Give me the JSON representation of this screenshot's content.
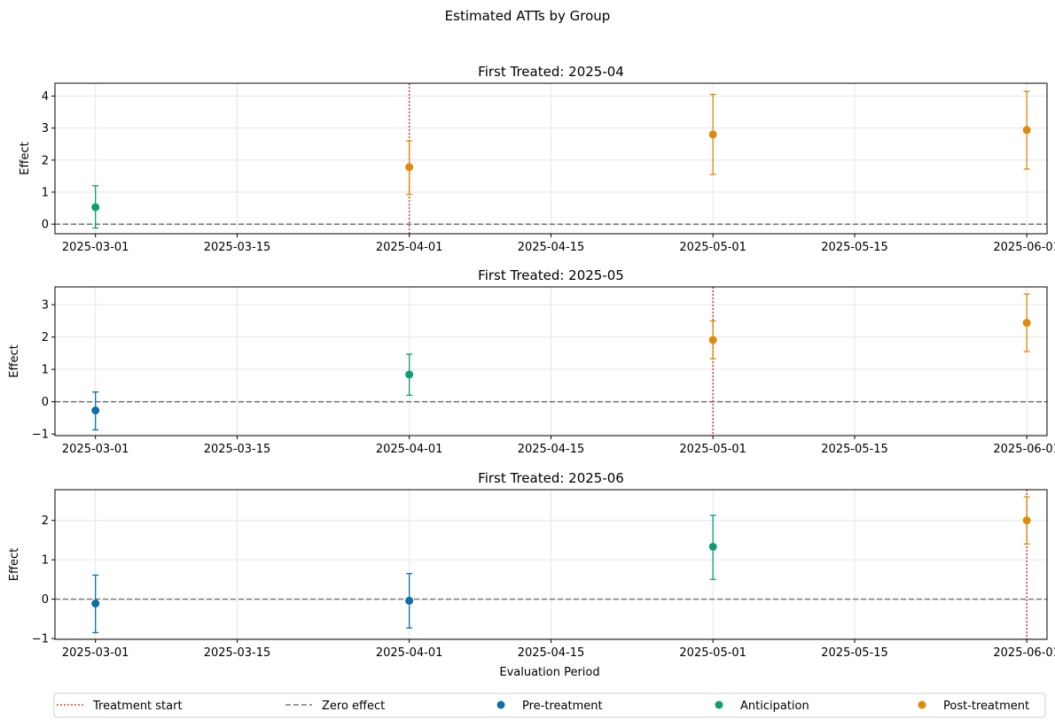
{
  "chart_data": {
    "type": "scatter",
    "title": "Estimated ATTs by Group",
    "xlabel": "Evaluation Period",
    "ylabel": "Effect",
    "x_ticks": [
      "2025-03-01",
      "2025-03-15",
      "2025-04-01",
      "2025-04-15",
      "2025-05-01",
      "2025-05-15",
      "2025-06-01"
    ],
    "xlim": [
      "2025-02-25",
      "2025-06-03"
    ],
    "grid": true,
    "legend_placement": "bottom",
    "legend": [
      {
        "label": "Treatment start",
        "kind": "dotted-line",
        "color": "#e8403a"
      },
      {
        "label": "Zero effect",
        "kind": "dashed-line",
        "color": "#7a7a7a"
      },
      {
        "label": "Pre-treatment",
        "kind": "marker",
        "color": "#0b6fa8"
      },
      {
        "label": "Anticipation",
        "kind": "marker",
        "color": "#0c9e73"
      },
      {
        "label": "Post-treatment",
        "kind": "marker",
        "color": "#de8a0b"
      }
    ],
    "colors": {
      "Pre-treatment": "#0b6fa8",
      "Anticipation": "#0c9e73",
      "Post-treatment": "#de8a0b",
      "treatment_line": "#e8403a",
      "zero_line": "#7a7a7a"
    },
    "panels": [
      {
        "title": "First Treated: 2025-04",
        "treatment_start": "2025-04-01",
        "ylim": [
          -0.3,
          4.4
        ],
        "yticks": [
          0,
          1,
          2,
          3,
          4
        ],
        "points": [
          {
            "x": "2025-03-01",
            "y": 0.53,
            "lo": -0.12,
            "hi": 1.2,
            "group": "Anticipation"
          },
          {
            "x": "2025-04-01",
            "y": 1.78,
            "lo": 0.93,
            "hi": 2.6,
            "group": "Post-treatment"
          },
          {
            "x": "2025-05-01",
            "y": 2.8,
            "lo": 1.55,
            "hi": 4.05,
            "group": "Post-treatment"
          },
          {
            "x": "2025-06-01",
            "y": 2.94,
            "lo": 1.72,
            "hi": 4.15,
            "group": "Post-treatment"
          }
        ]
      },
      {
        "title": "First Treated: 2025-05",
        "treatment_start": "2025-05-01",
        "ylim": [
          -1.05,
          3.55
        ],
        "yticks": [
          -1,
          0,
          1,
          2,
          3
        ],
        "points": [
          {
            "x": "2025-03-01",
            "y": -0.27,
            "lo": -0.87,
            "hi": 0.3,
            "group": "Pre-treatment"
          },
          {
            "x": "2025-04-01",
            "y": 0.84,
            "lo": 0.2,
            "hi": 1.47,
            "group": "Anticipation"
          },
          {
            "x": "2025-05-01",
            "y": 1.91,
            "lo": 1.33,
            "hi": 2.5,
            "group": "Post-treatment"
          },
          {
            "x": "2025-06-01",
            "y": 2.44,
            "lo": 1.55,
            "hi": 3.33,
            "group": "Post-treatment"
          }
        ]
      },
      {
        "title": "First Treated: 2025-06",
        "treatment_start": "2025-06-01",
        "ylim": [
          -1.02,
          2.78
        ],
        "yticks": [
          -1,
          0,
          1,
          2
        ],
        "points": [
          {
            "x": "2025-03-01",
            "y": -0.11,
            "lo": -0.85,
            "hi": 0.61,
            "group": "Pre-treatment"
          },
          {
            "x": "2025-04-01",
            "y": -0.04,
            "lo": -0.73,
            "hi": 0.65,
            "group": "Pre-treatment"
          },
          {
            "x": "2025-05-01",
            "y": 1.33,
            "lo": 0.5,
            "hi": 2.13,
            "group": "Anticipation"
          },
          {
            "x": "2025-06-01",
            "y": 2.0,
            "lo": 1.4,
            "hi": 2.6,
            "group": "Post-treatment"
          }
        ]
      }
    ]
  }
}
